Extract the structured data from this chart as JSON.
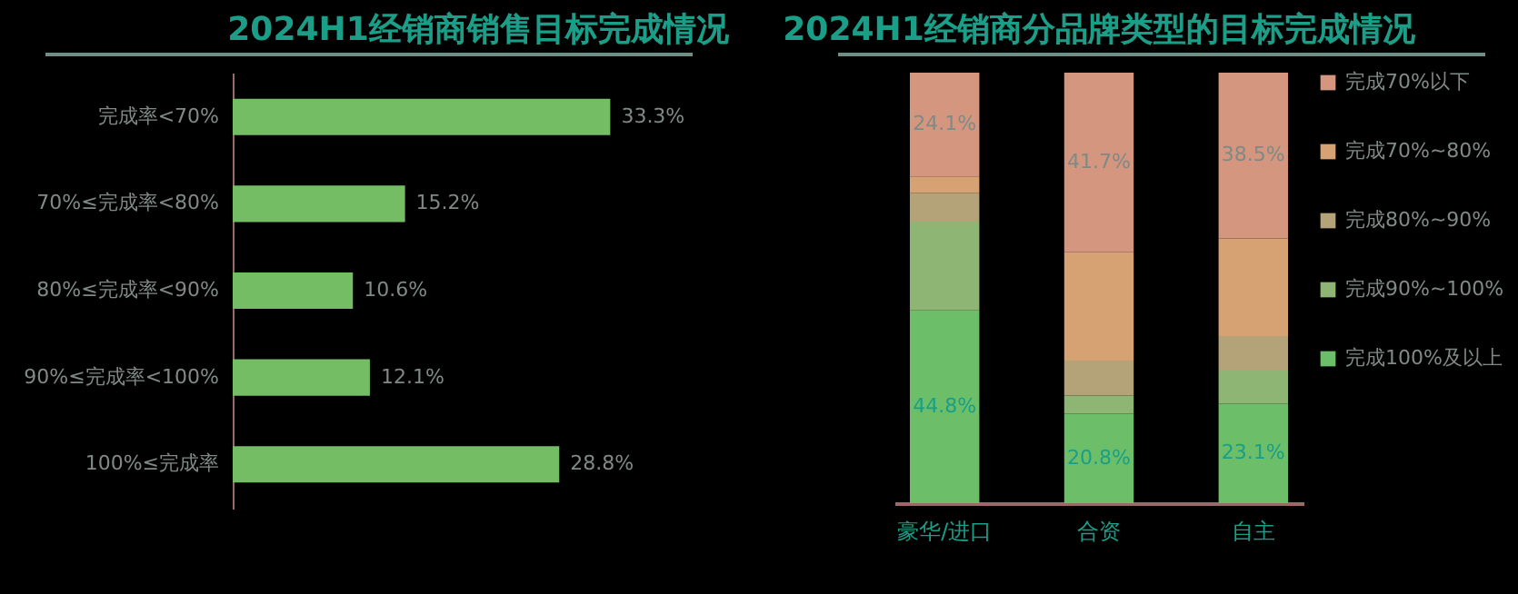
{
  "chart_data": [
    {
      "type": "bar",
      "orientation": "horizontal",
      "title": "2024H1经销商销售目标完成情况",
      "categories": [
        "完成率<70%",
        "70%≤完成率<80%",
        "80%≤完成率<90%",
        "90%≤完成率<100%",
        "100%≤完成率"
      ],
      "values": [
        33.3,
        15.2,
        10.6,
        12.1,
        28.8
      ],
      "value_labels": [
        "33.3%",
        "15.2%",
        "10.6%",
        "12.1%",
        "28.8%"
      ],
      "color": "#74bd64"
    },
    {
      "type": "bar",
      "stacked": true,
      "title": "2024H1经销商分品牌类型的目标完成情况",
      "categories": [
        "豪华/进口",
        "合资",
        "自主"
      ],
      "legend": "right",
      "series": [
        {
          "name": "完成100%及以上",
          "color": "#6cbf68",
          "values": [
            44.8,
            20.8,
            23.1
          ],
          "value_labels": [
            "44.8%",
            "20.8%",
            "23.1%"
          ]
        },
        {
          "name": "完成90%~100%",
          "color": "#8fb574",
          "values": [
            20.6,
            4.2,
            7.7
          ]
        },
        {
          "name": "完成80%~90%",
          "color": "#b4a278",
          "values": [
            6.7,
            8.1,
            8.0
          ]
        },
        {
          "name": "完成70%~80%",
          "color": "#d6a274",
          "values": [
            3.8,
            25.2,
            22.7
          ]
        },
        {
          "name": "完成70%以下",
          "color": "#d4967e",
          "values": [
            24.1,
            41.7,
            38.5
          ],
          "value_labels": [
            "24.1%",
            "41.7%",
            "38.5%"
          ]
        }
      ]
    }
  ]
}
